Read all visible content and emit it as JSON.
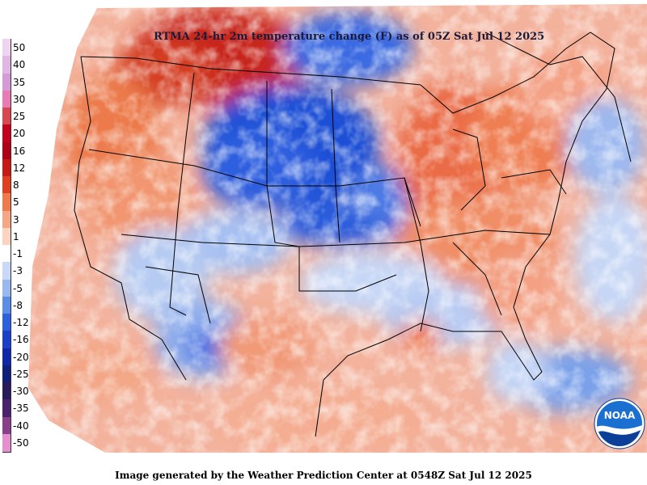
{
  "title": "RTMA 24-hr 2m temperature change (F) as of 05Z Sat Jul 12 2025",
  "footer": "Image generated by the Weather Prediction Center at 0548Z Sat Jul 12 2025",
  "logo_text": "NOAA",
  "legend": {
    "labels": [
      "50",
      "40",
      "35",
      "30",
      "25",
      "20",
      "16",
      "12",
      "8",
      "5",
      "3",
      "1",
      "-1",
      "-3",
      "-5",
      "-8",
      "-12",
      "-16",
      "-20",
      "-25",
      "-30",
      "-35",
      "-40",
      "-50"
    ],
    "colors": [
      "#efd3ef",
      "#e2b6e4",
      "#d59ad8",
      "#e87ab6",
      "#d8474f",
      "#c4001f",
      "#b00018",
      "#c61a14",
      "#e04020",
      "#ef7b4a",
      "#f6a682",
      "#fbd3c0",
      "#ffffff",
      "#c9d8f6",
      "#98b8ef",
      "#5a8de8",
      "#2d60de",
      "#1a3fc9",
      "#0f27a8",
      "#101f78",
      "#2a1a5a",
      "#4a2070",
      "#8a3f8a",
      "#e58fd0"
    ]
  }
}
